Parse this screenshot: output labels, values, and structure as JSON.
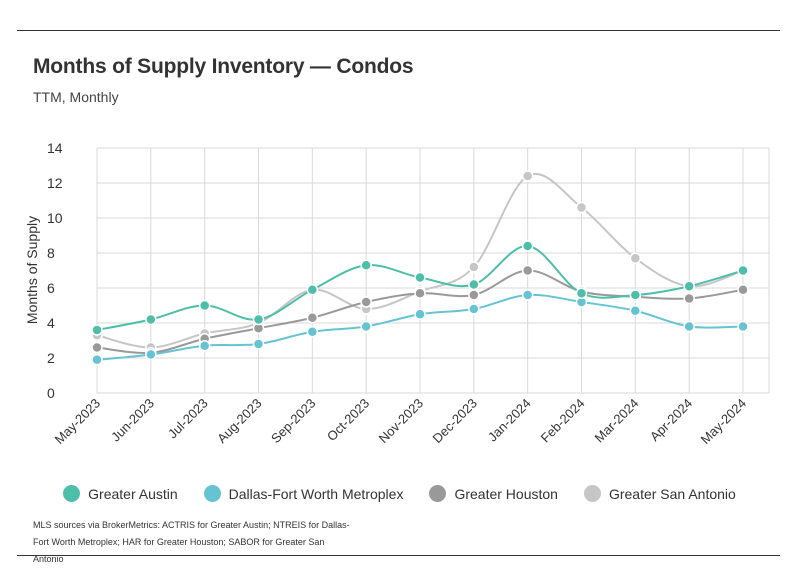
{
  "header": {
    "title": "Months of Supply Inventory — Condos",
    "subtitle": "TTM, Monthly"
  },
  "source_note": "MLS sources via BrokerMetrics: ACTRIS for Greater Austin; NTREIS for Dallas-Fort Worth Metroplex; HAR for Greater Houston; SABOR for Greater San Antonio",
  "chart_data": {
    "type": "line",
    "title": "Months of Supply Inventory — Condos",
    "subtitle": "TTM, Monthly",
    "xlabel": "",
    "ylabel": "Months of Supply",
    "categories": [
      "May-2023",
      "Jun-2023",
      "Jul-2023",
      "Aug-2023",
      "Sep-2023",
      "Oct-2023",
      "Nov-2023",
      "Dec-2023",
      "Jan-2024",
      "Feb-2024",
      "Mar-2024",
      "Apr-2024",
      "May-2024"
    ],
    "ylim": [
      0,
      14
    ],
    "yticks": [
      0,
      2,
      4,
      6,
      8,
      10,
      12,
      14
    ],
    "grid": true,
    "legend_position": "bottom",
    "series": [
      {
        "name": "Greater Austin",
        "color": "#4dbfa8",
        "values": [
          3.6,
          4.2,
          5.0,
          4.2,
          5.9,
          7.3,
          6.6,
          6.2,
          8.4,
          5.7,
          5.6,
          6.1,
          7.0
        ]
      },
      {
        "name": "Dallas-Fort Worth Metroplex",
        "color": "#66c3d2",
        "values": [
          1.9,
          2.2,
          2.7,
          2.8,
          3.5,
          3.8,
          4.5,
          4.8,
          5.6,
          5.2,
          4.7,
          3.8,
          3.8
        ]
      },
      {
        "name": "Greater Houston",
        "color": "#999999",
        "values": [
          2.6,
          2.3,
          3.1,
          3.7,
          4.3,
          5.2,
          5.7,
          5.6,
          7.0,
          5.8,
          5.5,
          5.4,
          5.9
        ]
      },
      {
        "name": "Greater San Antonio",
        "color": "#c6c6c6",
        "values": [
          3.3,
          2.6,
          3.4,
          4.0,
          5.9,
          4.8,
          5.8,
          7.2,
          12.4,
          10.6,
          7.7,
          6.1,
          7.0
        ]
      }
    ]
  }
}
